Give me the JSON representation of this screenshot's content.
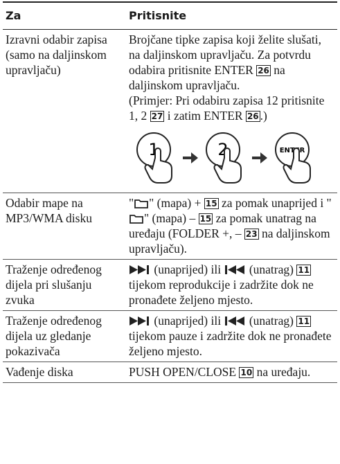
{
  "header": {
    "col1": "Za",
    "col2": "Pritisnite"
  },
  "rows": [
    {
      "label": "Izravni odabir zapisa (samo na daljinskom upravljaču)",
      "action": [
        "Brojčane tipke zapisa koji želite slušati, na daljinskom upravljaču. Za potvrdu odabira pritisnite ENTER ",
        "26",
        " na daljinskom upravljaču.",
        "(Primjer: Pri odabiru zapisa 12 pritisnite 1, 2 ",
        "27",
        " i zatim ENTER ",
        "26",
        ".)"
      ],
      "buttons": [
        "1",
        "2",
        "ENTER"
      ]
    },
    {
      "label": "Odabir mape na MP3/WMA disku",
      "action": [
        "\"",
        "\" (mapa) + ",
        "15",
        " za pomak unaprijed i \"",
        "\" (mapa) – ",
        "15",
        " za pomak unatrag na uređaju (FOLDER +, – ",
        "23",
        " na daljinskom upravljaču)."
      ]
    },
    {
      "label": "Traženje određenog dijela pri slušanju zvuka",
      "action": [
        " (unaprijed) ili ",
        " (unatrag) ",
        "11",
        " tijekom reprodukcije i zadržite dok ne pronađete željeno mjesto."
      ]
    },
    {
      "label": "Traženje određenog dijela uz gledanje pokazivača",
      "action": [
        " (unaprijed) ili ",
        " (unatrag) ",
        "11",
        " tijekom pauze i zadržite dok ne pronađete željeno mjesto."
      ]
    },
    {
      "label": "Vađenje diska",
      "action": [
        "PUSH OPEN/CLOSE ",
        "10",
        " na uređaju."
      ]
    }
  ]
}
